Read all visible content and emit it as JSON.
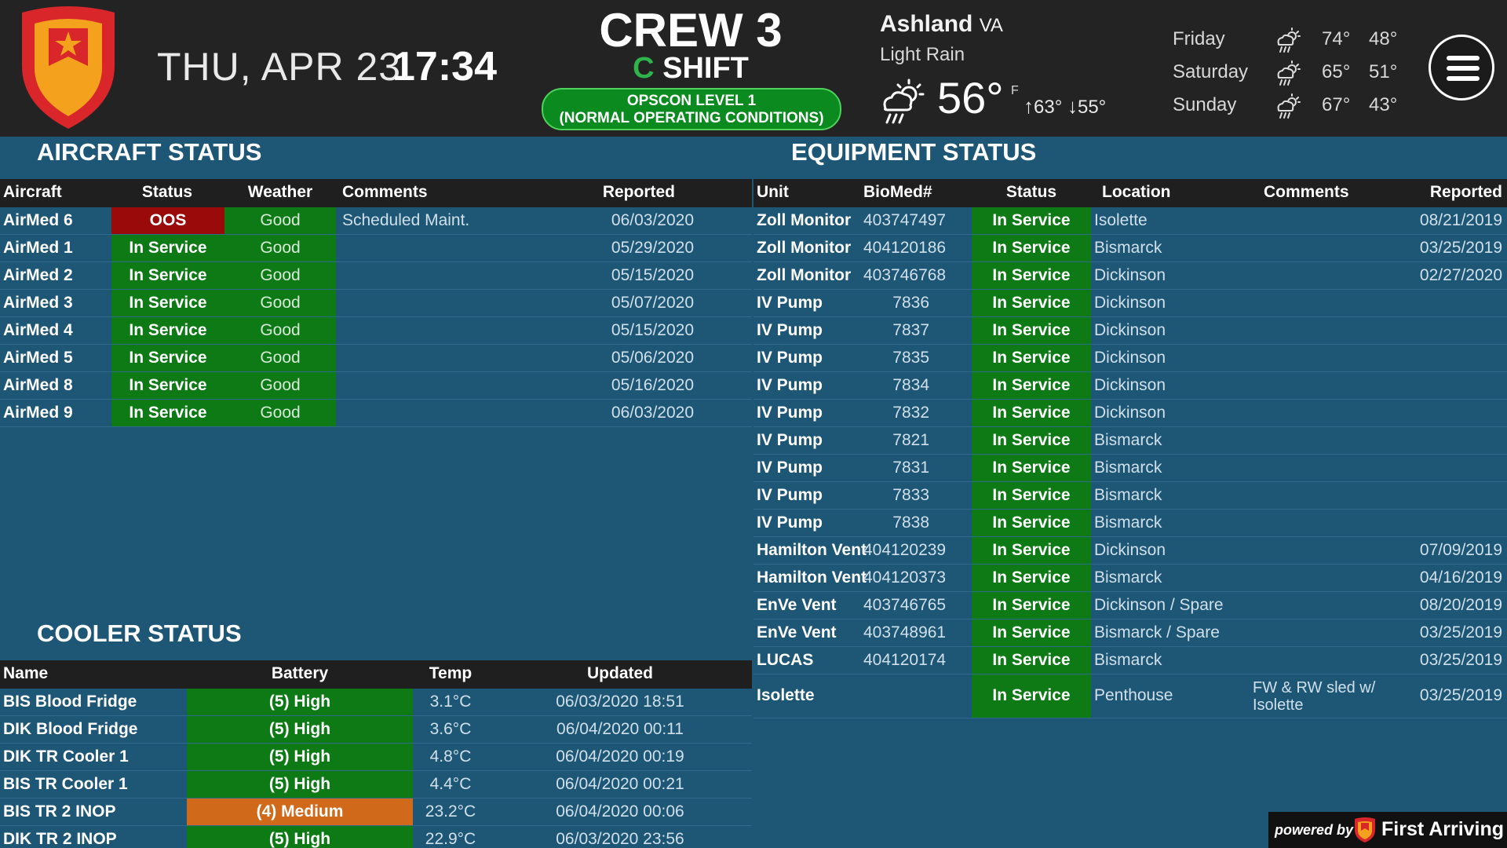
{
  "header": {
    "date": "THU, APR 23",
    "time": "17:34",
    "crew": "CREW 3",
    "shift_letter": "C",
    "shift_word": "SHIFT",
    "opscon_line1": "OPSCON LEVEL 1",
    "opscon_line2": "(NORMAL OPERATING CONDITIONS)"
  },
  "weather": {
    "city": "Ashland",
    "state": "VA",
    "condition": "Light Rain",
    "temp": "56°",
    "unit": "F",
    "high": "63°",
    "low": "55°",
    "icon": "rain-cloud-sun-icon",
    "forecast": [
      {
        "day": "Friday",
        "hi": "74°",
        "lo": "48°",
        "icon": "rain-cloud-sun-icon"
      },
      {
        "day": "Saturday",
        "hi": "65°",
        "lo": "51°",
        "icon": "rain-cloud-sun-icon"
      },
      {
        "day": "Sunday",
        "hi": "67°",
        "lo": "43°",
        "icon": "rain-cloud-sun-icon"
      }
    ]
  },
  "aircraft": {
    "title": "AIRCRAFT STATUS",
    "headers": {
      "aircraft": "Aircraft",
      "status": "Status",
      "weather": "Weather",
      "comments": "Comments",
      "reported": "Reported"
    },
    "rows": [
      {
        "name": "AirMed 6",
        "status": "OOS",
        "weather": "Good",
        "comments": "Scheduled Maint.",
        "reported": "06/03/2020"
      },
      {
        "name": "AirMed 1",
        "status": "In Service",
        "weather": "Good",
        "comments": "",
        "reported": "05/29/2020"
      },
      {
        "name": "AirMed 2",
        "status": "In Service",
        "weather": "Good",
        "comments": "",
        "reported": "05/15/2020"
      },
      {
        "name": "AirMed 3",
        "status": "In Service",
        "weather": "Good",
        "comments": "",
        "reported": "05/07/2020"
      },
      {
        "name": "AirMed 4",
        "status": "In Service",
        "weather": "Good",
        "comments": "",
        "reported": "05/15/2020"
      },
      {
        "name": "AirMed 5",
        "status": "In Service",
        "weather": "Good",
        "comments": "",
        "reported": "05/06/2020"
      },
      {
        "name": "AirMed 8",
        "status": "In Service",
        "weather": "Good",
        "comments": "",
        "reported": "05/16/2020"
      },
      {
        "name": "AirMed 9",
        "status": "In Service",
        "weather": "Good",
        "comments": "",
        "reported": "06/03/2020"
      }
    ]
  },
  "cooler": {
    "title": "COOLER STATUS",
    "headers": {
      "name": "Name",
      "battery": "Battery",
      "temp": "Temp",
      "updated": "Updated"
    },
    "rows": [
      {
        "name": "BIS Blood Fridge",
        "battery": "(5) High",
        "level": "high",
        "temp": "3.1°C",
        "updated": "06/03/2020 18:51"
      },
      {
        "name": "DIK Blood Fridge",
        "battery": "(5) High",
        "level": "high",
        "temp": "3.6°C",
        "updated": "06/04/2020 00:11"
      },
      {
        "name": "DIK TR Cooler 1",
        "battery": "(5) High",
        "level": "high",
        "temp": "4.8°C",
        "updated": "06/04/2020 00:19"
      },
      {
        "name": "BIS TR Cooler 1",
        "battery": "(5) High",
        "level": "high",
        "temp": "4.4°C",
        "updated": "06/04/2020 00:21"
      },
      {
        "name": "BIS TR 2 INOP",
        "battery": "(4) Medium",
        "level": "medium",
        "temp": "23.2°C",
        "updated": "06/04/2020 00:06"
      },
      {
        "name": "DIK TR 2 INOP",
        "battery": "(5) High",
        "level": "high",
        "temp": "22.9°C",
        "updated": "06/03/2020 23:56"
      }
    ]
  },
  "equipment": {
    "title": "EQUIPMENT STATUS",
    "headers": {
      "unit": "Unit",
      "biomed": "BioMed#",
      "status": "Status",
      "location": "Location",
      "comments": "Comments",
      "reported": "Reported"
    },
    "rows": [
      {
        "unit": "Zoll Monitor",
        "biomed": "403747497",
        "status": "In Service",
        "location": "Isolette",
        "comments": "",
        "reported": "08/21/2019"
      },
      {
        "unit": "Zoll Monitor",
        "biomed": "404120186",
        "status": "In Service",
        "location": "Bismarck",
        "comments": "",
        "reported": "03/25/2019"
      },
      {
        "unit": "Zoll Monitor",
        "biomed": "403746768",
        "status": "In Service",
        "location": "Dickinson",
        "comments": "",
        "reported": "02/27/2020"
      },
      {
        "unit": "IV Pump",
        "biomed": "7836",
        "status": "In Service",
        "location": "Dickinson",
        "comments": "",
        "reported": ""
      },
      {
        "unit": "IV Pump",
        "biomed": "7837",
        "status": "In Service",
        "location": "Dickinson",
        "comments": "",
        "reported": ""
      },
      {
        "unit": "IV Pump",
        "biomed": "7835",
        "status": "In Service",
        "location": "Dickinson",
        "comments": "",
        "reported": ""
      },
      {
        "unit": "IV Pump",
        "biomed": "7834",
        "status": "In Service",
        "location": "Dickinson",
        "comments": "",
        "reported": ""
      },
      {
        "unit": "IV Pump",
        "biomed": "7832",
        "status": "In Service",
        "location": "Dickinson",
        "comments": "",
        "reported": ""
      },
      {
        "unit": "IV Pump",
        "biomed": "7821",
        "status": "In Service",
        "location": "Bismarck",
        "comments": "",
        "reported": ""
      },
      {
        "unit": "IV Pump",
        "biomed": "7831",
        "status": "In Service",
        "location": "Bismarck",
        "comments": "",
        "reported": ""
      },
      {
        "unit": "IV Pump",
        "biomed": "7833",
        "status": "In Service",
        "location": "Bismarck",
        "comments": "",
        "reported": ""
      },
      {
        "unit": "IV Pump",
        "biomed": "7838",
        "status": "In Service",
        "location": "Bismarck",
        "comments": "",
        "reported": ""
      },
      {
        "unit": "Hamilton Vent",
        "biomed": "404120239",
        "status": "In Service",
        "location": "Dickinson",
        "comments": "",
        "reported": "07/09/2019"
      },
      {
        "unit": "Hamilton Vent",
        "biomed": "404120373",
        "status": "In Service",
        "location": "Bismarck",
        "comments": "",
        "reported": "04/16/2019"
      },
      {
        "unit": "EnVe Vent",
        "biomed": "403746765",
        "status": "In Service",
        "location": "Dickinson / Spare",
        "comments": "",
        "reported": "08/20/2019"
      },
      {
        "unit": "EnVe Vent",
        "biomed": "403748961",
        "status": "In Service",
        "location": "Bismarck / Spare",
        "comments": "",
        "reported": "03/25/2019"
      },
      {
        "unit": "LUCAS",
        "biomed": "404120174",
        "status": "In Service",
        "location": "Bismarck",
        "comments": "",
        "reported": "03/25/2019"
      },
      {
        "unit": "Isolette",
        "biomed": "",
        "status": "In Service",
        "location": "Penthouse",
        "comments_line1": "FW & RW sled w/",
        "comments_line2": "Isolette",
        "reported": "03/25/2019"
      }
    ]
  },
  "footer": {
    "powered_by": "powered by",
    "brand": "First Arriving"
  },
  "colors": {
    "background": "#1e5676",
    "header_bg": "#232323",
    "in_service": "#0d7a16",
    "oos": "#9b0a0a",
    "medium": "#d1691b",
    "logo_red": "#d8262b",
    "logo_orange": "#f4a21d"
  }
}
